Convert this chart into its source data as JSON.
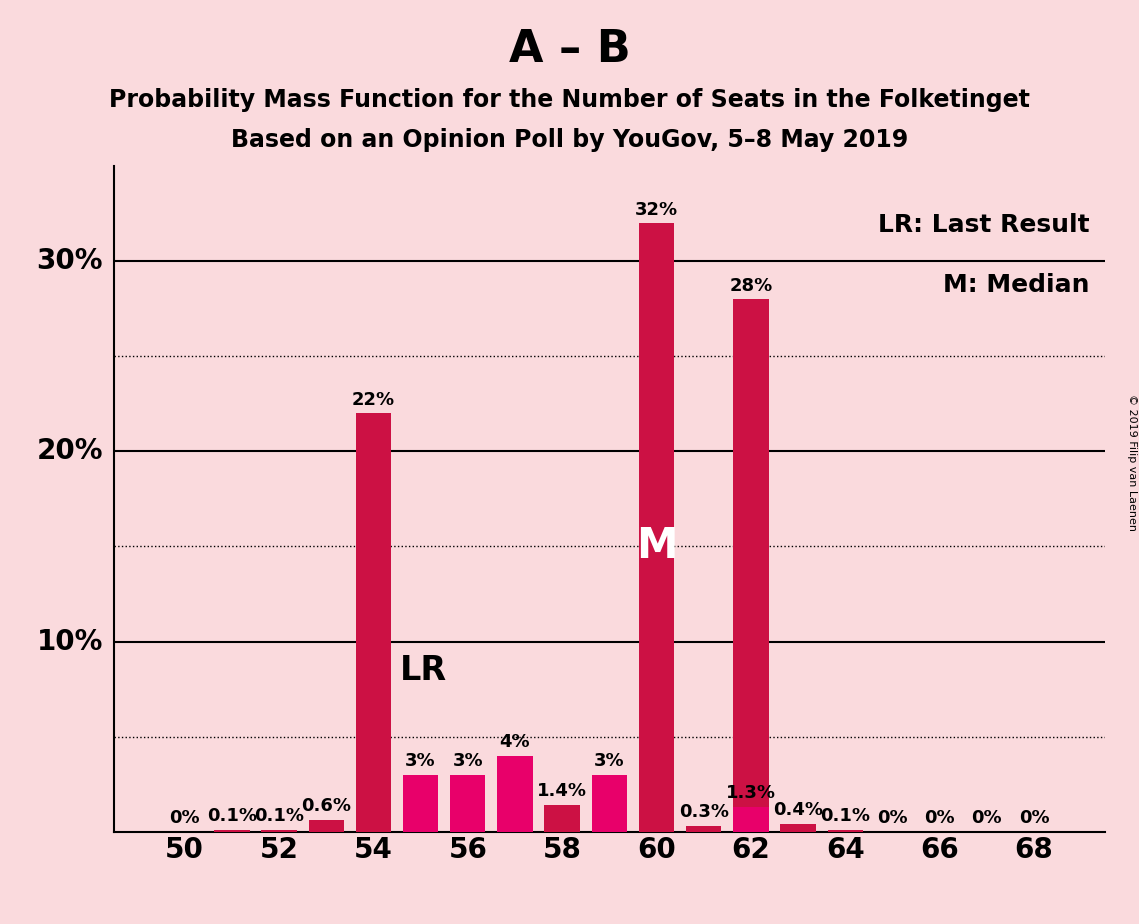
{
  "title_main": "A – B",
  "subtitle1": "Probability Mass Function for the Number of Seats in the Folketinget",
  "subtitle2": "Based on an Opinion Poll by YouGov, 5–8 May 2019",
  "background_color": "#FADADD",
  "plot_bg_color": "#FADADD",
  "seats": [
    50,
    51,
    52,
    53,
    54,
    55,
    56,
    57,
    58,
    59,
    60,
    61,
    62,
    63,
    64,
    65,
    66,
    67,
    68
  ],
  "red_values": [
    0.0,
    0.1,
    0.1,
    0.6,
    22.0,
    0.0,
    0.0,
    0.0,
    1.4,
    0.0,
    32.0,
    0.3,
    28.0,
    0.4,
    0.1,
    0.0,
    0.0,
    0.0,
    0.0
  ],
  "pink_values": [
    0.0,
    0.0,
    0.0,
    0.0,
    0.0,
    3.0,
    3.0,
    4.0,
    0.0,
    3.0,
    0.0,
    0.0,
    1.3,
    0.0,
    0.0,
    0.0,
    0.0,
    0.0,
    0.0
  ],
  "red_labels": [
    "0%",
    "0.1%",
    "0.1%",
    "0.6%",
    "22%",
    "",
    "",
    "",
    "1.4%",
    "",
    "32%",
    "0.3%",
    "28%",
    "0.4%",
    "0.1%",
    "0%",
    "0%",
    "0%",
    "0%"
  ],
  "pink_labels": [
    "",
    "",
    "",
    "",
    "",
    "3%",
    "3%",
    "4%",
    "",
    "3%",
    "",
    "",
    "1.3%",
    "",
    "",
    "",
    "",
    "",
    ""
  ],
  "red_color": "#CC1144",
  "pink_color": "#E8006A",
  "bar_width": 0.75,
  "ylim": [
    0,
    35
  ],
  "major_yticks": [
    10,
    20,
    30
  ],
  "dotted_yticks": [
    5,
    15,
    25
  ],
  "xtick_positions": [
    50,
    52,
    54,
    56,
    58,
    60,
    62,
    64,
    66,
    68
  ],
  "xlim": [
    48.5,
    69.5
  ],
  "median_seat": 60,
  "lr_seat": 54,
  "legend_text1": "LR: Last Result",
  "legend_text2": "M: Median",
  "copyright_text": "© 2019 Filip van Laenen",
  "title_fontsize": 32,
  "subtitle_fontsize": 17,
  "label_fontsize": 13,
  "ytick_fontsize": 20,
  "xtick_fontsize": 20
}
